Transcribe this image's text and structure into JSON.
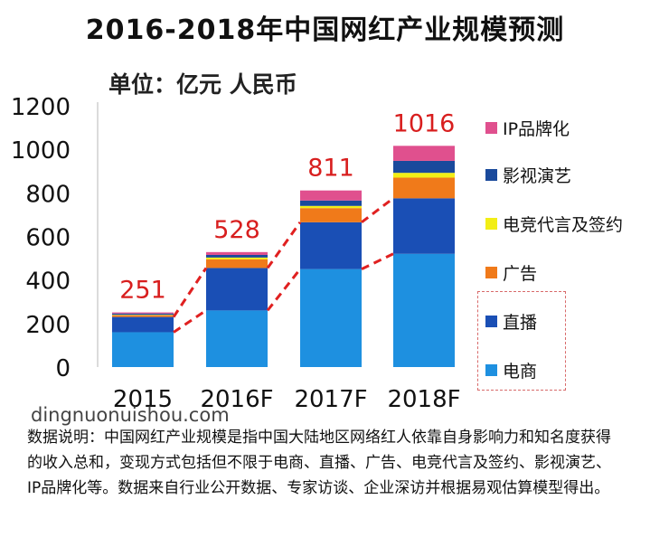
{
  "title": "2016-2018年中国网红产业规模预测",
  "unit": "单位：亿元 人民币",
  "watermark": "dingnuonuishou.com",
  "note": "数据说明：中国网红产业规模是指中国大陆地区网络红人依靠自身影响力和知名度获得的收入总和，变现方式包括但不限于电商、直播、广告、电竞代言及签约、影视演艺、IP品牌化等。数据来自行业公开数据、专家访谈、企业深访并根据易观估算模型得出。",
  "colors": {
    "电商": "#1e90e0",
    "直播": "#1a4fb5",
    "广告": "#f07a1a",
    "电竞代言及签约": "#f2ee16",
    "影视演艺": "#1a4a9c",
    "IP品牌化": "#e0508e",
    "trend": "#e02020",
    "total_label": "#d81e1e",
    "legend_box": "#d86a6a"
  },
  "chart_data": {
    "type": "bar",
    "stacked": true,
    "categories": [
      "2015",
      "2016F",
      "2017F",
      "2018F"
    ],
    "series": [
      {
        "name": "电商",
        "values": [
          160,
          260,
          450,
          520
        ]
      },
      {
        "name": "直播",
        "values": [
          70,
          195,
          215,
          255
        ]
      },
      {
        "name": "广告",
        "values": [
          8,
          40,
          65,
          95
        ]
      },
      {
        "name": "电竞代言及签约",
        "values": [
          2,
          8,
          10,
          22
        ]
      },
      {
        "name": "影视演艺",
        "values": [
          6,
          12,
          25,
          55
        ]
      },
      {
        "name": "IP品牌化",
        "values": [
          5,
          13,
          46,
          69
        ]
      }
    ],
    "totals": [
      "251",
      "528",
      "811",
      "1016"
    ],
    "ylim": [
      0,
      1200
    ],
    "yticks": [
      0,
      200,
      400,
      600,
      800,
      1000,
      1200
    ],
    "legend": {
      "placement": "right",
      "order": [
        "IP品牌化",
        "影视演艺",
        "电竞代言及签约",
        "广告",
        "直播",
        "电商"
      ]
    },
    "trend_lines": "dashed red lines connecting the top of 电商 and the top of 直播 segments between adjacent years",
    "grid": false
  }
}
